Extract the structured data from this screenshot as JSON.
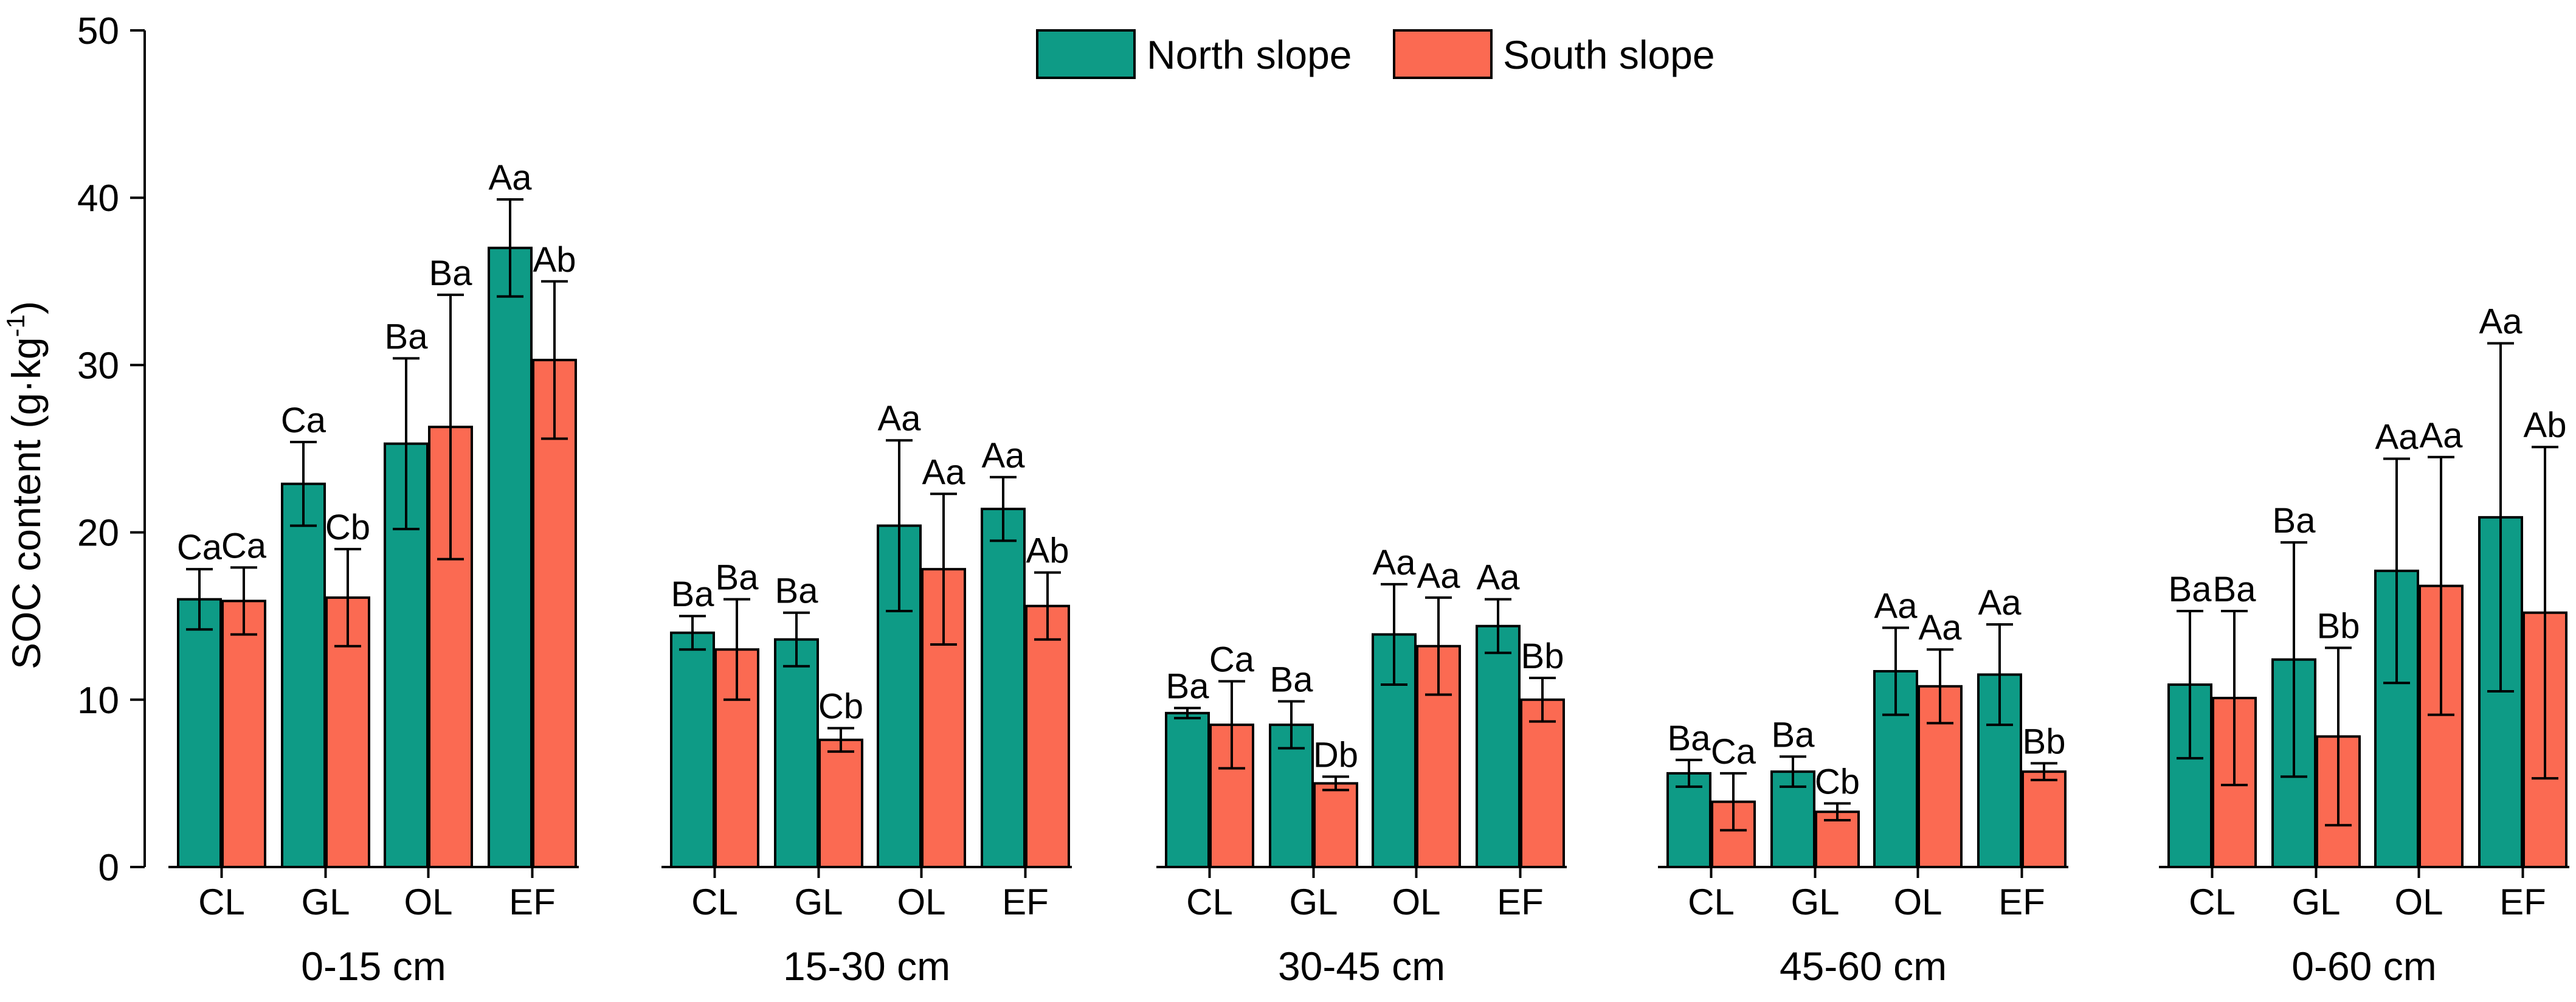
{
  "chart_data": {
    "type": "bar",
    "ylabel": "SOC content (g·kg",
    "ylabel_sup": "-1",
    "ylabel_close": ")",
    "ylim": [
      0,
      50
    ],
    "yticks": [
      "0",
      "10",
      "20",
      "30",
      "40",
      "50"
    ],
    "categories": [
      "CL",
      "GL",
      "OL",
      "EF"
    ],
    "colors": {
      "North slope": "#0e9b86",
      "South slope": "#fb6a52"
    },
    "legend": {
      "placement": "top-center",
      "items": [
        "North slope",
        "South slope"
      ]
    },
    "panels": [
      {
        "label": "0-15 cm",
        "series": [
          {
            "name": "North slope",
            "values": [
              16.0,
              22.9,
              25.3,
              37.0
            ],
            "errors": [
              1.8,
              2.5,
              5.1,
              2.9
            ],
            "letters": [
              "Ca",
              "Ca",
              "Ba",
              "Aa"
            ]
          },
          {
            "name": "South slope",
            "values": [
              15.9,
              16.1,
              26.3,
              30.3
            ],
            "errors": [
              2.0,
              2.9,
              7.9,
              4.7
            ],
            "letters": [
              "Ca",
              "Cb",
              "Ba",
              "Ab"
            ]
          }
        ]
      },
      {
        "label": "15-30 cm",
        "series": [
          {
            "name": "North slope",
            "values": [
              14.0,
              13.6,
              20.4,
              21.4
            ],
            "errors": [
              1.0,
              1.6,
              5.1,
              1.9
            ],
            "letters": [
              "Ba",
              "Ba",
              "Aa",
              "Aa"
            ]
          },
          {
            "name": "South slope",
            "values": [
              13.0,
              7.6,
              17.8,
              15.6
            ],
            "errors": [
              3.0,
              0.7,
              4.5,
              2.0
            ],
            "letters": [
              "Ba",
              "Cb",
              "Aa",
              "Ab"
            ]
          }
        ]
      },
      {
        "label": "30-45 cm",
        "series": [
          {
            "name": "North slope",
            "values": [
              9.2,
              8.5,
              13.9,
              14.4
            ],
            "errors": [
              0.3,
              1.4,
              3.0,
              1.6
            ],
            "letters": [
              "Ba",
              "Ba",
              "Aa",
              "Aa"
            ]
          },
          {
            "name": "South slope",
            "values": [
              8.5,
              5.0,
              13.2,
              10.0
            ],
            "errors": [
              2.6,
              0.4,
              2.9,
              1.3
            ],
            "letters": [
              "Ca",
              "Db",
              "Aa",
              "Bb"
            ]
          }
        ]
      },
      {
        "label": "45-60 cm",
        "series": [
          {
            "name": "North slope",
            "values": [
              5.6,
              5.7,
              11.7,
              11.5
            ],
            "errors": [
              0.8,
              0.9,
              2.6,
              3.0
            ],
            "letters": [
              "Ba",
              "Ba",
              "Aa",
              "Aa"
            ]
          },
          {
            "name": "South slope",
            "values": [
              3.9,
              3.3,
              10.8,
              5.7
            ],
            "errors": [
              1.7,
              0.5,
              2.2,
              0.5
            ],
            "letters": [
              "Ca",
              "Cb",
              "Aa",
              "Bb"
            ]
          }
        ]
      },
      {
        "label": "0-60 cm",
        "series": [
          {
            "name": "North slope",
            "values": [
              10.9,
              12.4,
              17.7,
              20.9
            ],
            "errors": [
              4.4,
              7.0,
              6.7,
              10.4
            ],
            "letters": [
              "Ba",
              "Ba",
              "Aa",
              "Aa"
            ]
          },
          {
            "name": "South slope",
            "values": [
              10.1,
              7.8,
              16.8,
              15.2
            ],
            "errors": [
              5.2,
              5.3,
              7.7,
              9.9
            ],
            "letters": [
              "Ba",
              "Bb",
              "Aa",
              "Ab"
            ]
          }
        ]
      }
    ]
  }
}
